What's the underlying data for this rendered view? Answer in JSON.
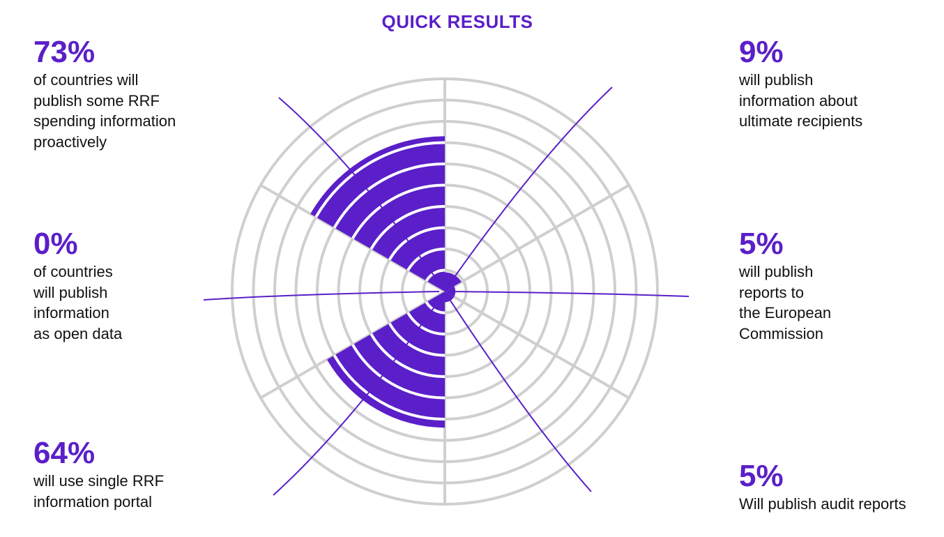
{
  "title": "QUICK RESULTS",
  "colors": {
    "accent": "#5a1fc8",
    "grid": "#cfcfcf",
    "text": "#111111"
  },
  "stats": {
    "proactive": {
      "value": "73%",
      "description": "of countries will\npublish some RRF\nspending information\nproactively"
    },
    "open_data": {
      "value": "0%",
      "description": "of countries\nwill publish\ninformation\nas open data"
    },
    "portal": {
      "value": "64%",
      "description": "will use single RRF\ninformation portal"
    },
    "recipients": {
      "value": "9%",
      "description": "will publish\ninformation about\nultimate recipients"
    },
    "reports_ec": {
      "value": "5%",
      "description": "will publish\nreports to\nthe European\nCommission"
    },
    "audit": {
      "value": "5%",
      "description": "Will publish audit reports"
    }
  },
  "chart_data": {
    "type": "polar-area",
    "title": "QUICK RESULTS",
    "rmax": 100,
    "grid_rings": 10,
    "sectors": 6,
    "start_angle_deg": 0,
    "direction": "clockwise",
    "categories": [
      "will publish information about ultimate recipients",
      "will publish reports to the European Commission",
      "Will publish audit reports",
      "will use single RRF information portal",
      "of countries will publish information as open data",
      "of countries will publish some RRF spending information proactively"
    ],
    "values": [
      9,
      5,
      5,
      64,
      0,
      73
    ],
    "grid": true
  }
}
